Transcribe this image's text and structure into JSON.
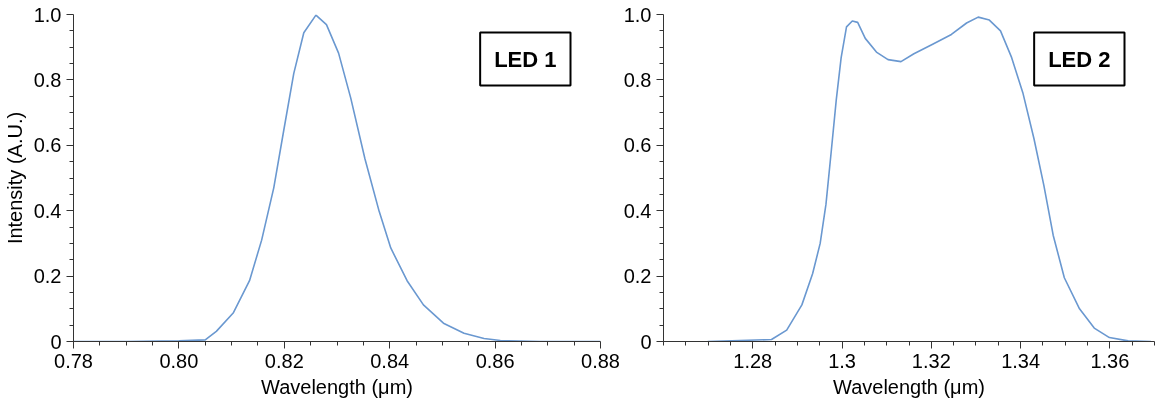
{
  "chart_data": [
    {
      "type": "line",
      "xlabel": "Wavelength (μm)",
      "ylabel": "Intensity (A.U.)",
      "annotations": [
        "LED 1"
      ],
      "xlim": [
        0.78,
        0.88
      ],
      "ylim": [
        0,
        1
      ],
      "xticks": [
        0.78,
        {
          "value": 0.8,
          "label": "0.80"
        },
        0.82,
        0.84,
        0.86,
        0.88
      ],
      "yticks": [
        0,
        0.2,
        0.4,
        0.6,
        0.8,
        {
          "value": 1,
          "label": "1.0"
        }
      ],
      "grid": false,
      "series": [
        {
          "color": "#6a98d0",
          "x": [
            0.78,
            0.79,
            0.8,
            0.805,
            0.8071,
            0.8103,
            0.8134,
            0.8157,
            0.818,
            0.8199,
            0.8218,
            0.8237,
            0.826,
            0.828,
            0.8303,
            0.8326,
            0.8353,
            0.838,
            0.8402,
            0.8433,
            0.8464,
            0.8502,
            0.8541,
            0.8579,
            0.861,
            0.8686,
            0.88
          ],
          "values": [
            0,
            0,
            0.002,
            0.005,
            0.031,
            0.087,
            0.186,
            0.31,
            0.47,
            0.646,
            0.82,
            0.944,
            0.998,
            0.969,
            0.882,
            0.745,
            0.559,
            0.398,
            0.286,
            0.186,
            0.112,
            0.056,
            0.025,
            0.009,
            0.003,
            0,
            0
          ]
        }
      ]
    },
    {
      "type": "line",
      "xlabel": "Wavelength (μm)",
      "annotations": [
        "LED 2"
      ],
      "xlim": [
        1.26,
        1.37
      ],
      "ylim": [
        0,
        1
      ],
      "xticks": [
        1.28,
        1.3,
        1.32,
        1.34,
        1.36
      ],
      "yticks": [
        0,
        0.2,
        0.4,
        0.6,
        0.8,
        {
          "value": 1,
          "label": "1.0"
        }
      ],
      "grid": false,
      "series": [
        {
          "color": "#6a98d0",
          "x": [
            1.2699,
            1.2842,
            1.2876,
            1.291,
            1.2934,
            1.2951,
            1.2964,
            1.2976,
            1.2987,
            1.2998,
            1.301,
            1.3023,
            1.3035,
            1.3052,
            1.3077,
            1.3103,
            1.3132,
            1.3161,
            1.3203,
            1.3245,
            1.3279,
            1.3305,
            1.333,
            1.3355,
            1.338,
            1.3405,
            1.343,
            1.3452,
            1.3473,
            1.3498,
            1.3532,
            1.3565,
            1.3599,
            1.3641,
            1.3692
          ],
          "values": [
            0,
            0.006,
            0.035,
            0.112,
            0.207,
            0.3,
            0.42,
            0.584,
            0.738,
            0.868,
            0.962,
            0.98,
            0.976,
            0.927,
            0.885,
            0.862,
            0.856,
            0.88,
            0.909,
            0.939,
            0.974,
            0.992,
            0.983,
            0.95,
            0.868,
            0.761,
            0.62,
            0.478,
            0.325,
            0.195,
            0.1,
            0.041,
            0.012,
            0.002,
            0
          ]
        }
      ]
    }
  ]
}
